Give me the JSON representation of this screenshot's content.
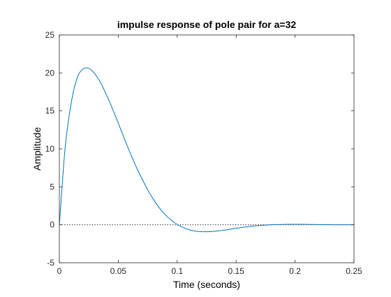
{
  "chart_data": {
    "type": "line",
    "title": "impulse response of  pole pair for a=32",
    "xlabel": "Time (seconds)",
    "ylabel": "Amplitude",
    "xlim": [
      0,
      0.25
    ],
    "ylim": [
      -5,
      25
    ],
    "xticks": [
      0,
      0.05,
      0.1,
      0.15,
      0.2,
      0.25
    ],
    "xtick_labels": [
      "0",
      "0.05",
      "0.1",
      "0.15",
      "0.2",
      "0.25"
    ],
    "yticks": [
      -5,
      0,
      5,
      10,
      15,
      20,
      25
    ],
    "ytick_labels": [
      "-5",
      "0",
      "5",
      "10",
      "15",
      "20",
      "25"
    ],
    "grid": false,
    "series": [
      {
        "color": "#0072BD",
        "x": [
          0,
          0.005,
          0.01,
          0.015,
          0.02,
          0.025,
          0.03,
          0.035,
          0.04,
          0.045,
          0.05,
          0.055,
          0.06,
          0.065,
          0.07,
          0.075,
          0.08,
          0.085,
          0.09,
          0.095,
          0.1,
          0.105,
          0.11,
          0.115,
          0.12,
          0.125,
          0.13,
          0.135,
          0.14,
          0.145,
          0.15,
          0.155,
          0.16,
          0.165,
          0.17,
          0.175,
          0.18,
          0.185,
          0.19,
          0.195,
          0.2,
          0.205,
          0.21,
          0.215,
          0.22,
          0.225,
          0.23,
          0.235,
          0.24,
          0.245,
          0.25
        ],
        "y": [
          0,
          10.3,
          16.0,
          19.3,
          20.5,
          20.6,
          19.9,
          18.7,
          17.1,
          15.3,
          13.4,
          11.4,
          9.5,
          7.7,
          6.1,
          4.6,
          3.3,
          2.2,
          1.3,
          0.6,
          0.05,
          -0.35,
          -0.65,
          -0.82,
          -0.9,
          -0.92,
          -0.88,
          -0.8,
          -0.7,
          -0.58,
          -0.46,
          -0.35,
          -0.25,
          -0.16,
          -0.09,
          -0.04,
          0.0,
          0.03,
          0.05,
          0.06,
          0.06,
          0.06,
          0.05,
          0.04,
          0.03,
          0.02,
          0.01,
          0.0,
          0.0,
          0.0,
          0.0
        ]
      }
    ],
    "reference_line": {
      "y": 0,
      "style": "dotted",
      "color": "#000000"
    }
  }
}
